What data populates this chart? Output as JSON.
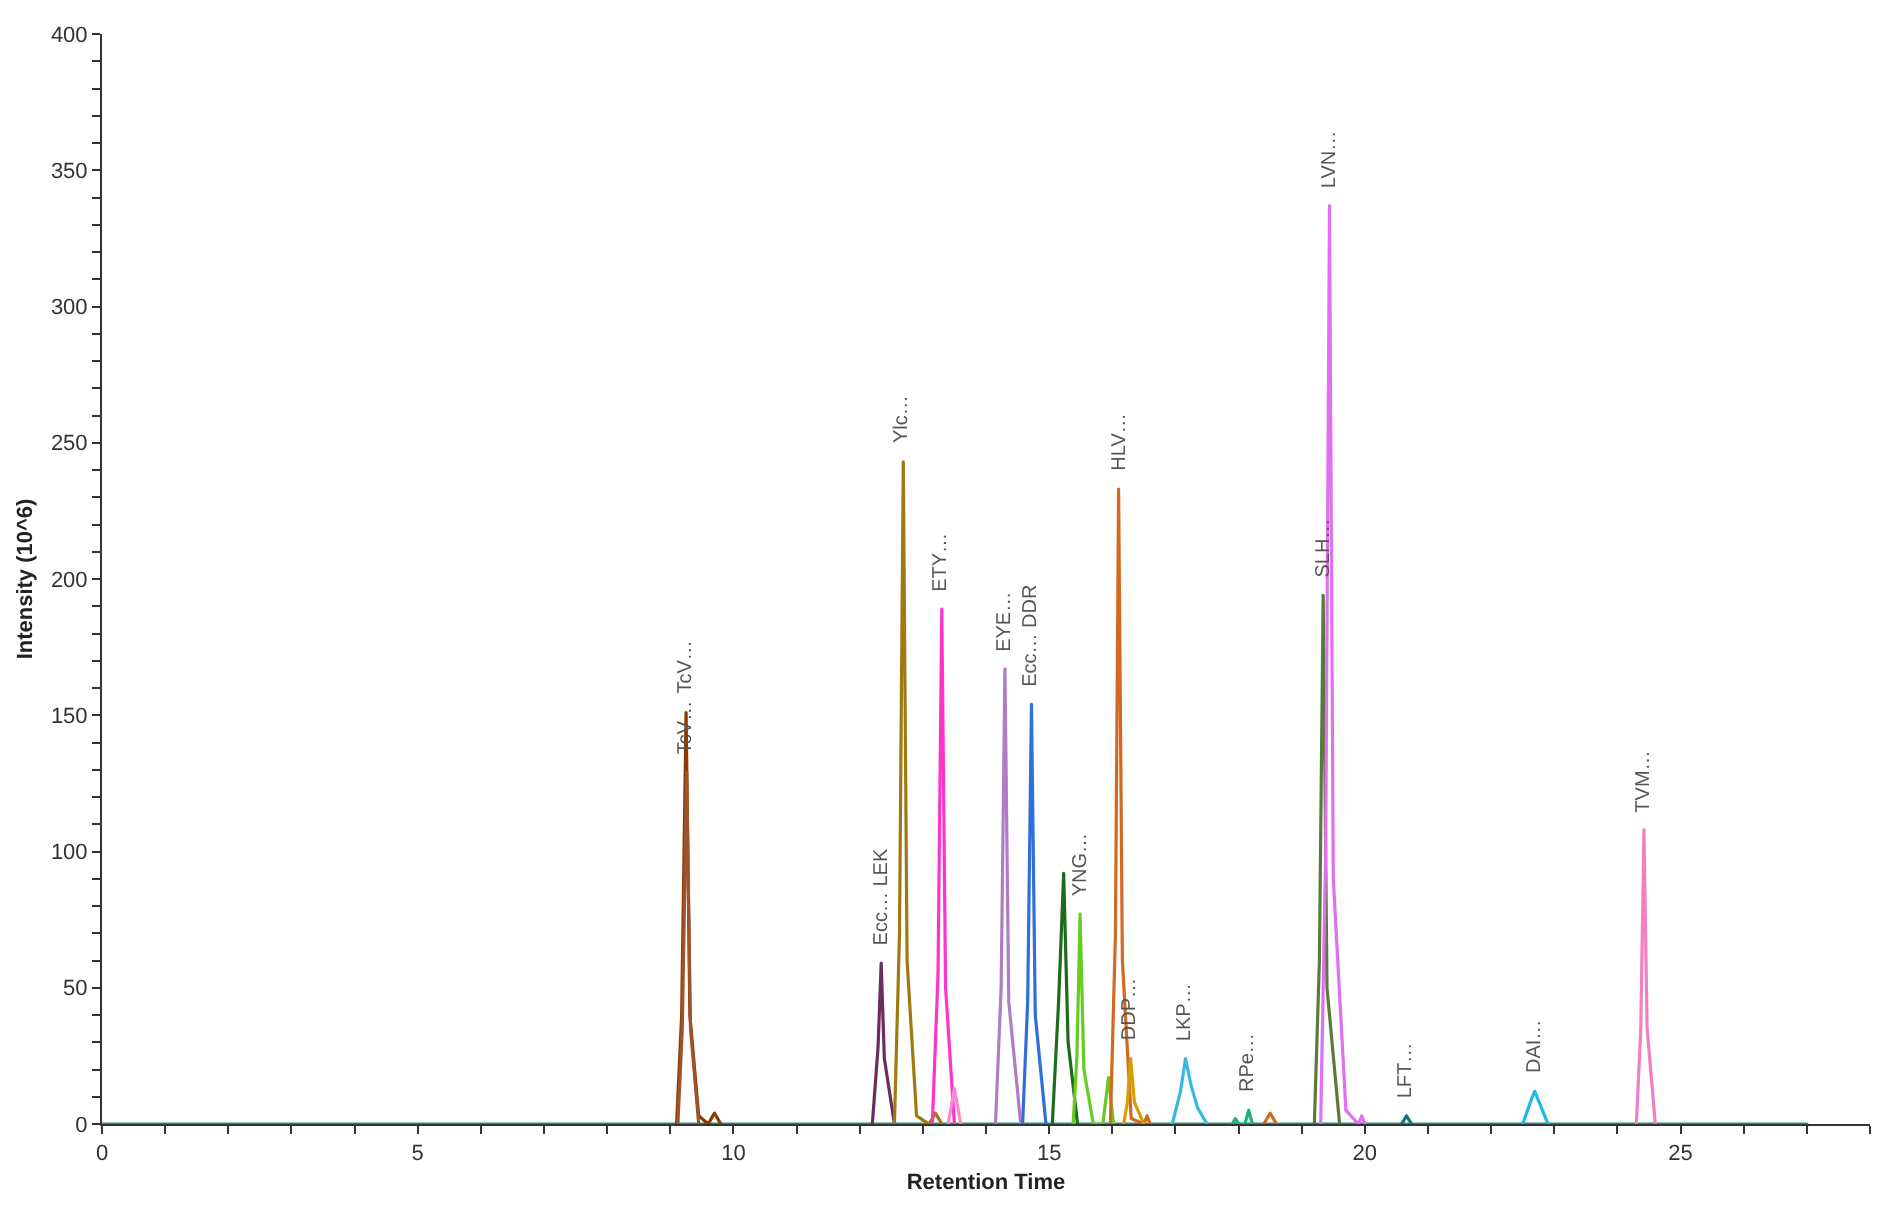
{
  "chart_data": {
    "type": "line",
    "xlabel": "Retention Time",
    "ylabel": "Intensity (10^6)",
    "xlim": [
      0,
      28
    ],
    "ylim": [
      0,
      400
    ],
    "xticks": [
      0,
      {
        "value": 1,
        "label": null
      },
      {
        "value": 2,
        "label": null
      },
      {
        "value": 3,
        "label": null
      },
      {
        "value": 4,
        "label": null
      },
      5,
      {
        "value": 6,
        "label": null
      },
      {
        "value": 7,
        "label": null
      },
      {
        "value": 8,
        "label": null
      },
      {
        "value": 9,
        "label": null
      },
      10,
      {
        "value": 11,
        "label": null
      },
      {
        "value": 12,
        "label": null
      },
      {
        "value": 13,
        "label": null
      },
      {
        "value": 14,
        "label": null
      },
      15,
      {
        "value": 16,
        "label": null
      },
      {
        "value": 17,
        "label": null
      },
      {
        "value": 18,
        "label": null
      },
      {
        "value": 19,
        "label": null
      },
      20,
      {
        "value": 21,
        "label": null
      },
      {
        "value": 22,
        "label": null
      },
      {
        "value": 23,
        "label": null
      },
      {
        "value": 24,
        "label": null
      },
      25,
      {
        "value": 26,
        "label": null
      },
      {
        "value": 27,
        "label": null
      },
      {
        "value": 28,
        "label": null
      }
    ],
    "yticks": [
      0,
      {
        "value": 10,
        "label": null
      },
      {
        "value": 20,
        "label": null
      },
      {
        "value": 30,
        "label": null
      },
      {
        "value": 40,
        "label": null
      },
      50,
      {
        "value": 60,
        "label": null
      },
      {
        "value": 70,
        "label": null
      },
      {
        "value": 80,
        "label": null
      },
      {
        "value": 90,
        "label": null
      },
      100,
      {
        "value": 110,
        "label": null
      },
      {
        "value": 120,
        "label": null
      },
      {
        "value": 130,
        "label": null
      },
      {
        "value": 140,
        "label": null
      },
      150,
      {
        "value": 160,
        "label": null
      },
      {
        "value": 170,
        "label": null
      },
      {
        "value": 180,
        "label": null
      },
      {
        "value": 190,
        "label": null
      },
      200,
      {
        "value": 210,
        "label": null
      },
      {
        "value": 220,
        "label": null
      },
      {
        "value": 230,
        "label": null
      },
      {
        "value": 240,
        "label": null
      },
      250,
      {
        "value": 260,
        "label": null
      },
      {
        "value": 270,
        "label": null
      },
      {
        "value": 280,
        "label": null
      },
      {
        "value": 290,
        "label": null
      },
      300,
      {
        "value": 310,
        "label": null
      },
      {
        "value": 320,
        "label": null
      },
      {
        "value": 330,
        "label": null
      },
      {
        "value": 340,
        "label": null
      },
      350,
      {
        "value": 360,
        "label": null
      },
      {
        "value": 370,
        "label": null
      },
      {
        "value": 380,
        "label": null
      },
      {
        "value": 390,
        "label": null
      },
      400
    ],
    "marker": "none",
    "line_style": "solid",
    "series": [
      {
        "color": "#1a9a7a",
        "x": [
          0,
          27
        ],
        "values": [
          0,
          0
        ]
      },
      {
        "color": "#8b3a00",
        "x": [
          9.1,
          9.18,
          9.25,
          9.31,
          9.45,
          9.6,
          9.7,
          9.8
        ],
        "values": [
          0,
          40,
          151,
          40,
          3,
          0,
          4,
          0
        ]
      },
      {
        "color": "#a0522d",
        "x": [
          9.12,
          9.19,
          9.26,
          9.32,
          9.45
        ],
        "values": [
          0,
          35,
          129,
          35,
          0
        ]
      },
      {
        "color": "#6b2d5c",
        "x": [
          12.2,
          12.29,
          12.34,
          12.39,
          12.55
        ],
        "values": [
          0,
          28,
          59,
          24,
          0
        ]
      },
      {
        "color": "#a07a10",
        "x": [
          12.55,
          12.63,
          12.69,
          12.75,
          12.9,
          13.1,
          13.2,
          13.3
        ],
        "values": [
          0,
          70,
          243,
          60,
          3,
          0,
          4,
          0
        ]
      },
      {
        "color": "#ff33cc",
        "x": [
          13.15,
          13.24,
          13.3,
          13.36,
          13.5
        ],
        "values": [
          0,
          55,
          189,
          50,
          0
        ]
      },
      {
        "color": "#ff88cc",
        "x": [
          13.4,
          13.5,
          13.6
        ],
        "values": [
          0,
          13,
          0
        ]
      },
      {
        "color": "#b07cc6",
        "x": [
          14.15,
          14.24,
          14.3,
          14.36,
          14.55
        ],
        "values": [
          0,
          50,
          167,
          45,
          0
        ]
      },
      {
        "color": "#2f6fdc",
        "x": [
          14.58,
          14.66,
          14.72,
          14.78,
          14.95
        ],
        "values": [
          0,
          45,
          154,
          40,
          0
        ]
      },
      {
        "color": "#1e6b1e",
        "x": [
          15.05,
          15.15,
          15.23,
          15.3,
          15.45
        ],
        "values": [
          0,
          45,
          92,
          30,
          0
        ]
      },
      {
        "color": "#66cc22",
        "x": [
          15.38,
          15.44,
          15.49,
          15.55,
          15.7,
          15.85,
          15.94,
          16.02
        ],
        "values": [
          0,
          25,
          77,
          20,
          0,
          0,
          17,
          0
        ]
      },
      {
        "color": "#d2691e",
        "x": [
          15.97,
          16.05,
          16.1,
          16.16,
          16.3,
          16.5,
          16.55,
          16.6
        ],
        "values": [
          0,
          70,
          233,
          60,
          2,
          0,
          3,
          0
        ]
      },
      {
        "color": "#d4a000",
        "x": [
          16.18,
          16.24,
          16.29,
          16.35,
          16.5
        ],
        "values": [
          0,
          8,
          24,
          8,
          0
        ]
      },
      {
        "color": "#33bbe0",
        "x": [
          16.95,
          17.08,
          17.16,
          17.25,
          17.35,
          17.5
        ],
        "values": [
          0,
          12,
          24,
          14,
          6,
          0
        ]
      },
      {
        "color": "#20b080",
        "x": [
          17.9,
          17.95,
          18.0,
          18.1,
          18.16,
          18.22
        ],
        "values": [
          0,
          2,
          0,
          0,
          5,
          0
        ]
      },
      {
        "color": "#d2691e",
        "x": [
          18.4,
          18.5,
          18.6
        ],
        "values": [
          0,
          4,
          0
        ]
      },
      {
        "color": "#5a7a3a",
        "x": [
          19.2,
          19.28,
          19.34,
          19.4,
          19.6
        ],
        "values": [
          0,
          60,
          194,
          50,
          0
        ]
      },
      {
        "color": "#e070f0",
        "x": [
          19.3,
          19.38,
          19.44,
          19.5,
          19.7,
          19.9,
          19.95,
          20.0
        ],
        "values": [
          0,
          100,
          337,
          90,
          5,
          0,
          3,
          0
        ]
      },
      {
        "color": "#1a7080",
        "x": [
          20.58,
          20.66,
          20.74
        ],
        "values": [
          0,
          3,
          0
        ]
      },
      {
        "color": "#20b8e8",
        "x": [
          22.5,
          22.62,
          22.69,
          22.76,
          22.9
        ],
        "values": [
          0,
          8,
          12,
          8,
          0
        ]
      },
      {
        "color": "#f080c0",
        "x": [
          24.3,
          24.37,
          24.42,
          24.47,
          24.6
        ],
        "values": [
          0,
          35,
          108,
          35,
          0
        ]
      }
    ],
    "annotations": [
      {
        "text": "TcV…",
        "x": 9.25,
        "y": 151
      },
      {
        "text": "TcV…",
        "x": 9.26,
        "y": 129
      },
      {
        "text": "Ecc… LEK",
        "x": 12.34,
        "y": 59
      },
      {
        "text": "Ylc…",
        "x": 12.69,
        "y": 243
      },
      {
        "text": "ETY…",
        "x": 13.3,
        "y": 189
      },
      {
        "text": "EYE…",
        "x": 14.3,
        "y": 167
      },
      {
        "text": "Ecc… DDR",
        "x": 14.72,
        "y": 154
      },
      {
        "text": "YNG…",
        "x": 15.49,
        "y": 77
      },
      {
        "text": "HLV…",
        "x": 16.1,
        "y": 233
      },
      {
        "text": "DDP…",
        "x": 16.29,
        "y": 24
      },
      {
        "text": "LKP…",
        "x": 17.16,
        "y": 24
      },
      {
        "text": "RPe…",
        "x": 18.16,
        "y": 5
      },
      {
        "text": "SLH…",
        "x": 19.34,
        "y": 194
      },
      {
        "text": "LVN…",
        "x": 19.44,
        "y": 337
      },
      {
        "text": "LFT…",
        "x": 20.66,
        "y": 3
      },
      {
        "text": "DAI…",
        "x": 22.69,
        "y": 12
      },
      {
        "text": "TVM…",
        "x": 24.42,
        "y": 108
      }
    ]
  }
}
